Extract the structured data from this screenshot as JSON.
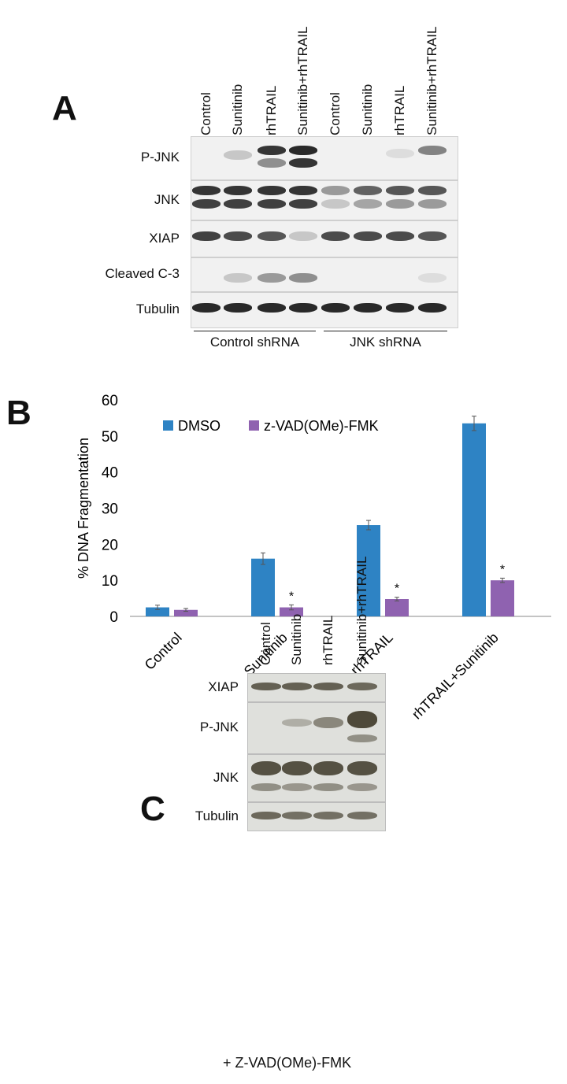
{
  "panel_a": {
    "letter": "A",
    "lanes": [
      "Control",
      "Sunitinib",
      "rhTRAIL",
      "Sunitinib+rhTRAIL",
      "Control",
      "Sunitinib",
      "rhTRAIL",
      "Sunitinib+rhTRAIL"
    ],
    "rows": [
      "P-JNK",
      "JNK",
      "XIAP",
      "Cleaved C-3",
      "Tubulin"
    ],
    "groups": [
      "Control shRNA",
      "JNK shRNA"
    ]
  },
  "panel_b": {
    "letter": "B"
  },
  "panel_c": {
    "letter": "C",
    "lanes": [
      "Control",
      "Sunitinib",
      "rhTRAIL",
      "Sunitinib+rhTRAIL"
    ],
    "rows": [
      "XIAP",
      "P-JNK",
      "JNK",
      "Tubulin"
    ],
    "footer": "+ Z-VAD(OMe)-FMK"
  },
  "chart_data": {
    "type": "bar",
    "categories": [
      "Control",
      "Sunitinib",
      "rhTRAIL",
      "rhTRAIL+Sunitinib"
    ],
    "series": [
      {
        "name": "DMSO",
        "values": [
          2.5,
          16,
          25.3,
          53.5
        ],
        "errors": [
          0.6,
          1.6,
          1.3,
          2.0
        ],
        "color": "#2e83c4"
      },
      {
        "name": "z-VAD(OMe)-FMK",
        "values": [
          1.8,
          2.5,
          4.8,
          10
        ],
        "errors": [
          0.4,
          0.7,
          0.5,
          0.6
        ],
        "color": "#8f62b0"
      }
    ],
    "significance": [
      "",
      "*",
      "*",
      "*"
    ],
    "ylabel": "% DNA Fragmentation",
    "ylim": [
      0,
      60
    ],
    "yticks": [
      0,
      10,
      20,
      30,
      40,
      50,
      60
    ],
    "legend_position": "top-left",
    "grid": false
  }
}
